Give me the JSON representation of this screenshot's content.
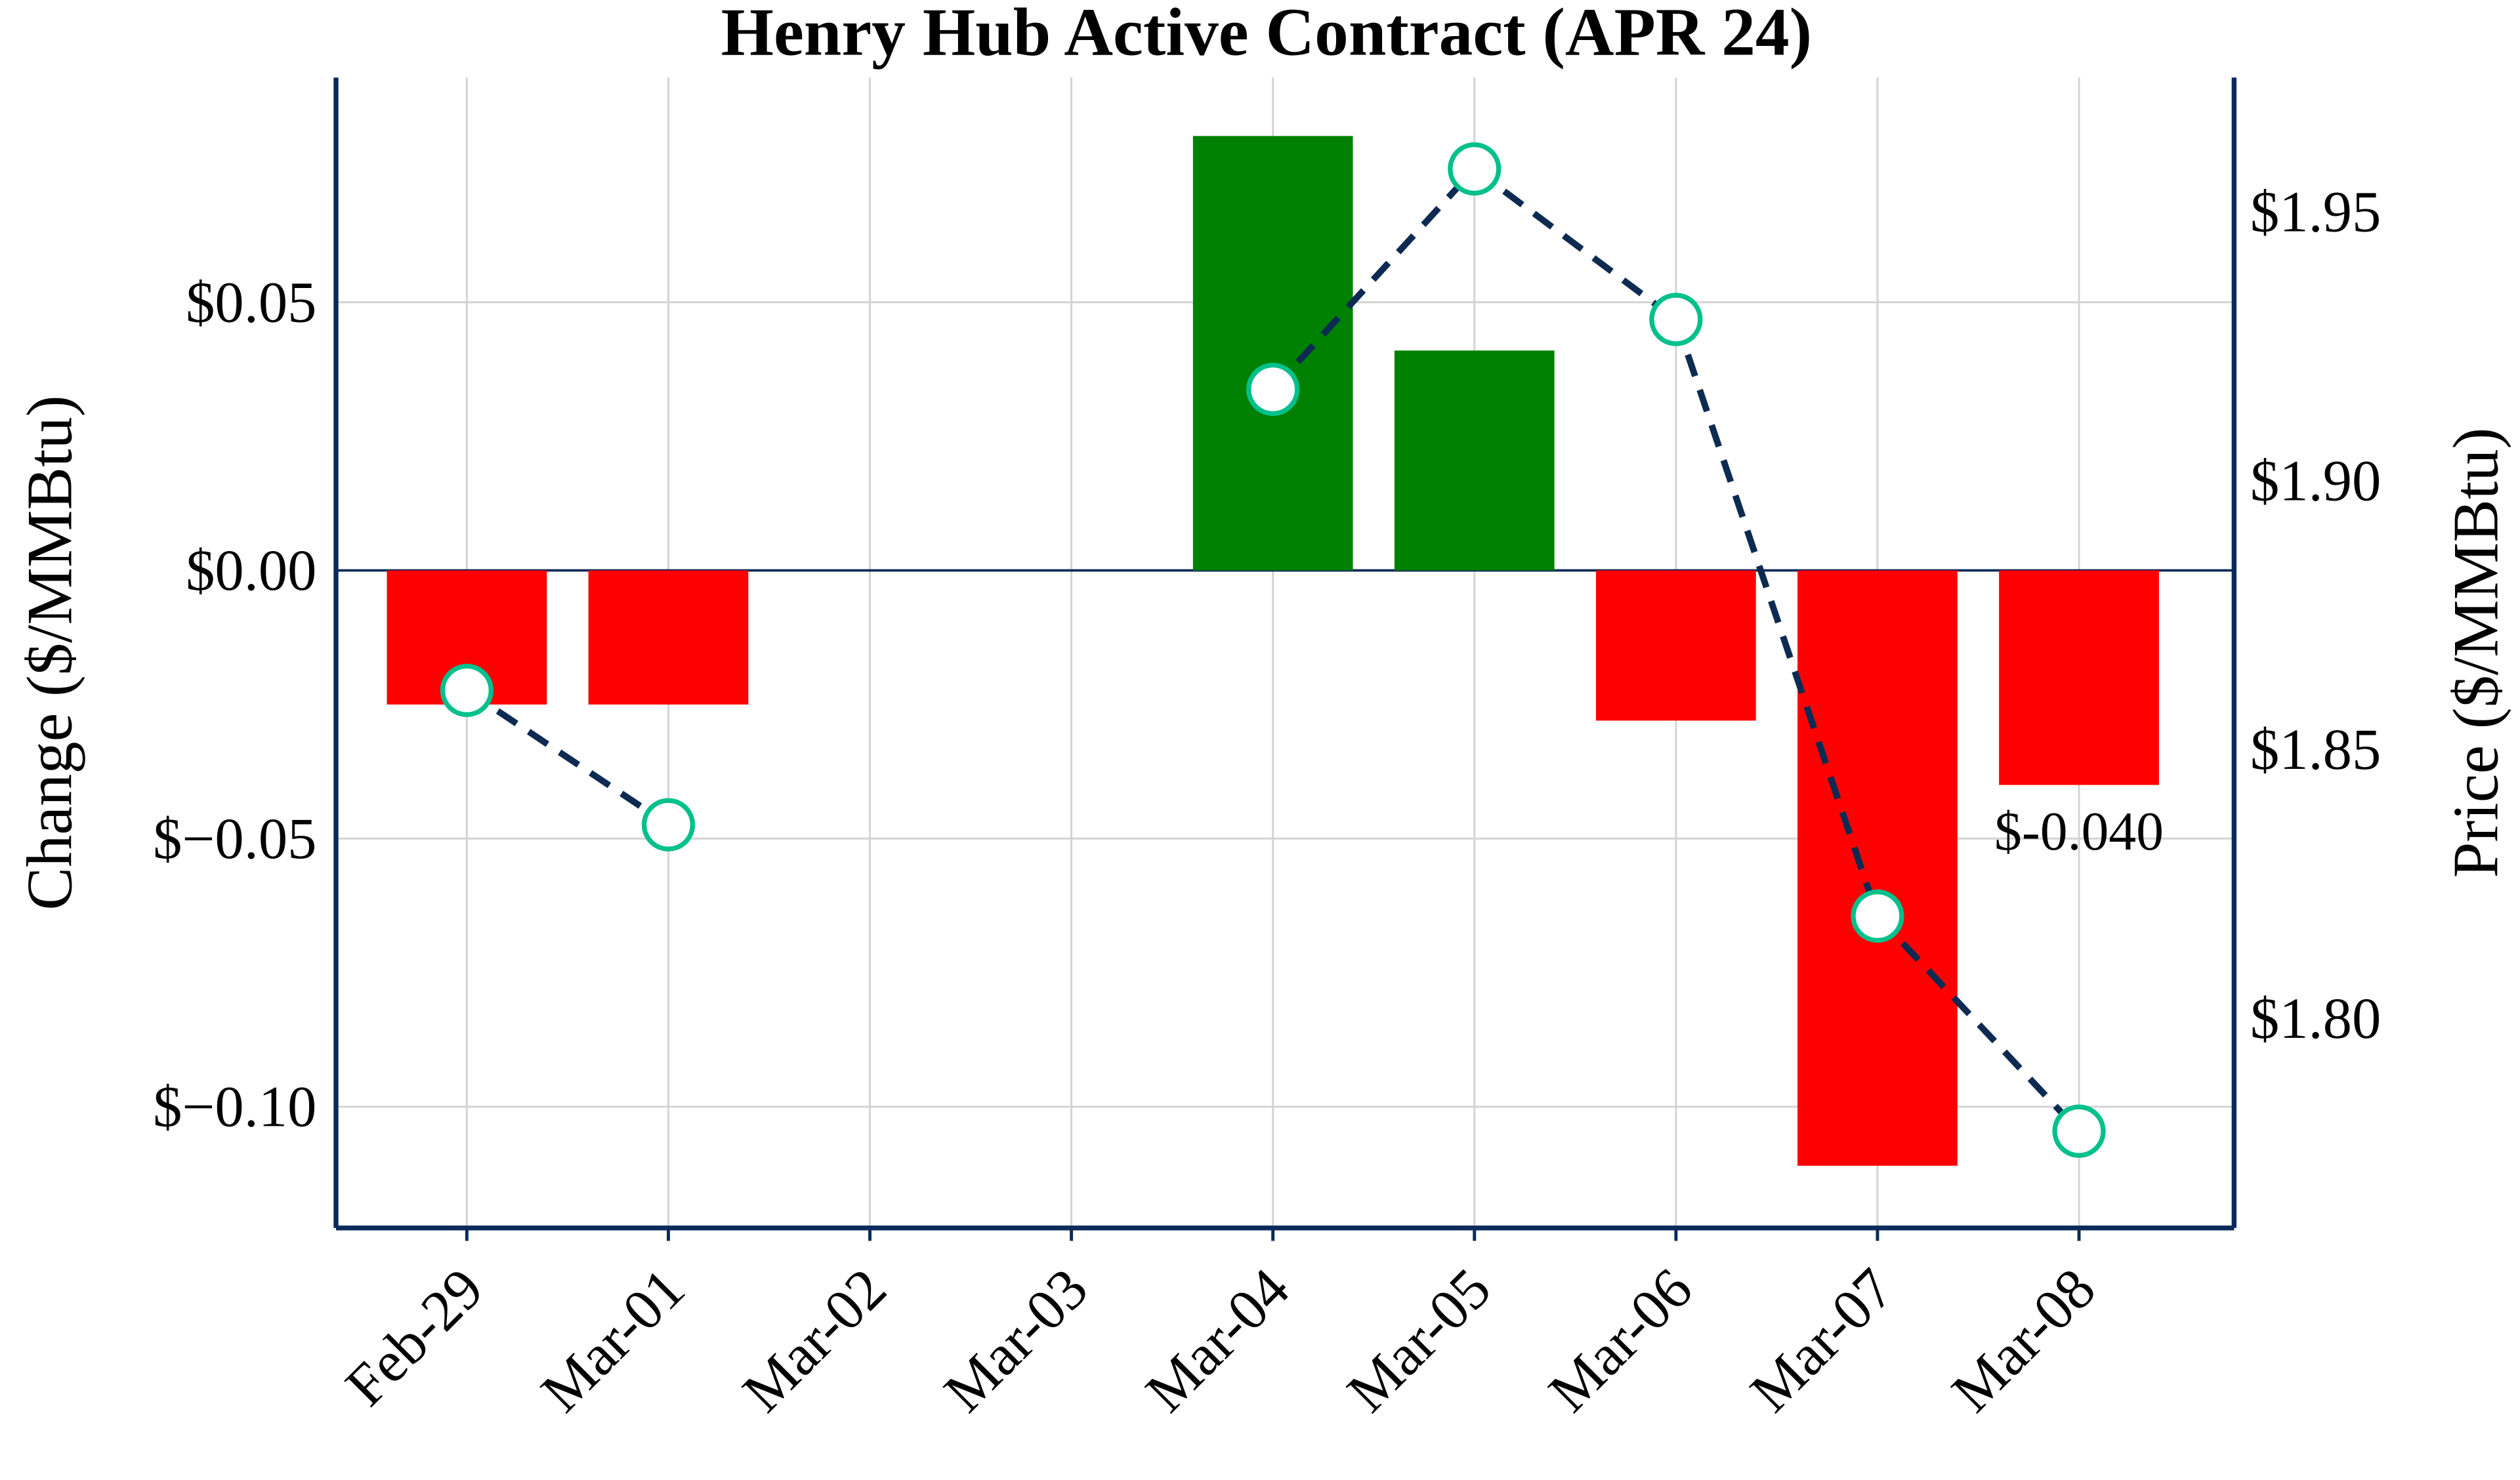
{
  "chart_data": {
    "type": "bar",
    "title": "Henry Hub Active Contract (APR 24)",
    "categories": [
      "Feb-29",
      "Mar-01",
      "Mar-02",
      "Mar-03",
      "Mar-04",
      "Mar-05",
      "Mar-06",
      "Mar-07",
      "Mar-08"
    ],
    "series": [
      {
        "type": "bar",
        "axis": "left",
        "values": [
          -0.025,
          -0.025,
          0,
          0,
          0.081,
          0.041,
          -0.028,
          -0.111,
          -0.04
        ]
      },
      {
        "type": "line",
        "axis": "right",
        "values": [
          1.861,
          1.836,
          null,
          null,
          1.917,
          1.958,
          1.93,
          1.819,
          1.779
        ]
      }
    ],
    "ylabel": "Change ($/MMBtu)",
    "y2label": "Price ($/MMBtu)",
    "ylim": [
      -0.1226,
      0.0919
    ],
    "y2lim": [
      1.761,
      1.975
    ],
    "yticks": [
      0.05,
      0.0,
      -0.05,
      -0.1
    ],
    "ytick_labels": [
      "$0.05",
      "$0.00",
      "$−0.05",
      "$−0.10"
    ],
    "y2ticks": [
      1.95,
      1.9,
      1.85,
      1.8
    ],
    "y2tick_labels": [
      "$1.95",
      "$1.90",
      "$1.85",
      "$1.80"
    ],
    "annotation": {
      "category": "Mar-08",
      "text": "$-0.040"
    },
    "grid": true,
    "colors": {
      "positive": "#008000",
      "negative": "#ff0000",
      "line": "#0d2b52",
      "marker_edge": "#00c08b",
      "marker_fill": "#ffffff",
      "axis": "#0b2a5a",
      "grid": "#d3d3d3"
    }
  }
}
